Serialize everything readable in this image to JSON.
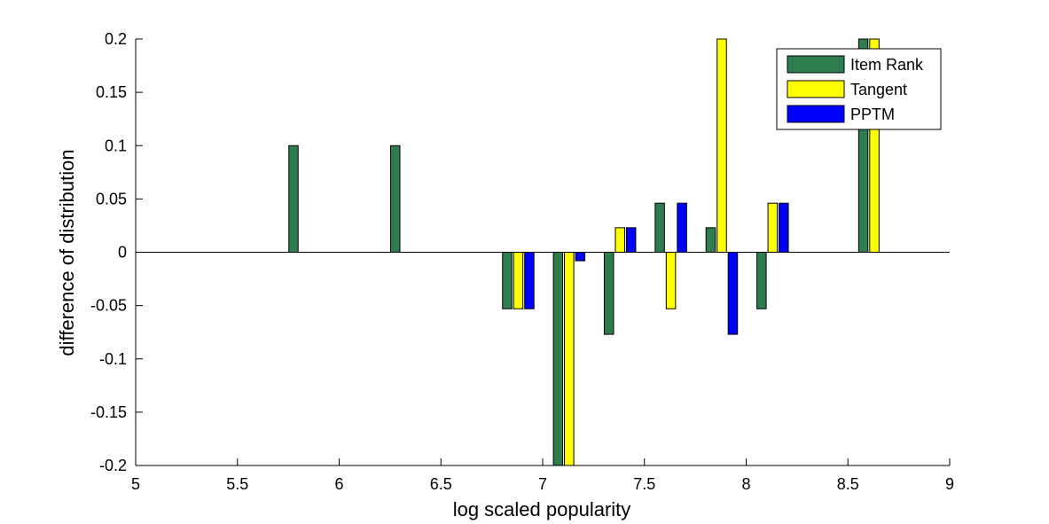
{
  "chart_data": {
    "type": "bar",
    "title": "",
    "xlabel": "log scaled popularity",
    "ylabel": "difference of distribution",
    "xlim": [
      5,
      9
    ],
    "ylim": [
      -0.2,
      0.2
    ],
    "xticks": [
      "5",
      "5.5",
      "6",
      "6.5",
      "7",
      "7.5",
      "8",
      "8.5",
      "9"
    ],
    "yticks": [
      "-0.2",
      "-0.15",
      "-0.1",
      "-0.05",
      "0",
      "0.05",
      "0.1",
      "0.15",
      "0.2"
    ],
    "grid": false,
    "legend_position": "top-right",
    "x": [
      5.83,
      6.33,
      6.88,
      7.13,
      7.38,
      7.63,
      7.88,
      8.13,
      8.63
    ],
    "series": [
      {
        "name": "Item Rank",
        "color": "#2e7d4f",
        "values": [
          0.1,
          0.1,
          -0.053,
          -0.2,
          -0.077,
          0.046,
          0.023,
          -0.053,
          0.2
        ]
      },
      {
        "name": "Tangent",
        "color": "#ffff00",
        "values": [
          0,
          0,
          -0.053,
          -0.2,
          0.023,
          -0.053,
          0.2,
          0.046,
          0.2
        ]
      },
      {
        "name": "PPTM",
        "color": "#0000ff",
        "values": [
          0,
          0,
          -0.053,
          -0.008,
          0.023,
          0.046,
          -0.077,
          0.046,
          0
        ]
      }
    ]
  }
}
